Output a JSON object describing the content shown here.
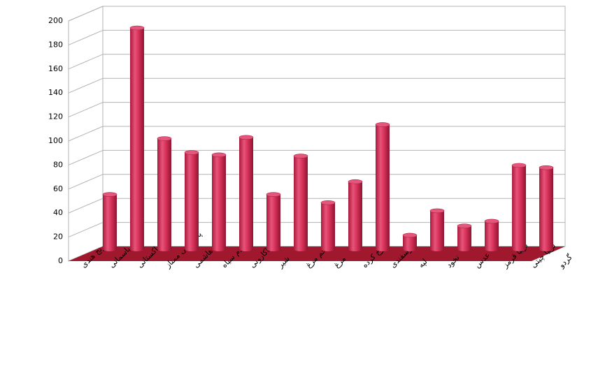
{
  "chart_data": {
    "type": "bar3d",
    "categories": [
      "برنج هندی",
      "باسماتی",
      "پاکستانی",
      "پاکستانی ممتاز",
      "هاشمی",
      "دم سیاه",
      "ماکارونی",
      "شیر",
      "تخم مرغ",
      "مرغ",
      "چرخ کرده",
      "گوسفندی",
      "لپه",
      "نخود",
      "عدس",
      "لوبیا قرمز",
      "لوبیا چیتی",
      "گردو"
    ],
    "values": [
      47,
      190,
      95,
      83,
      81,
      96,
      47,
      80,
      40,
      58,
      107,
      12,
      33,
      20,
      24,
      72,
      70,
      null
    ],
    "color": "#d8325a",
    "ylim": [
      0,
      200
    ],
    "yticks": [
      0,
      20,
      40,
      60,
      80,
      100,
      120,
      140,
      160,
      180,
      200
    ],
    "grid": true
  }
}
